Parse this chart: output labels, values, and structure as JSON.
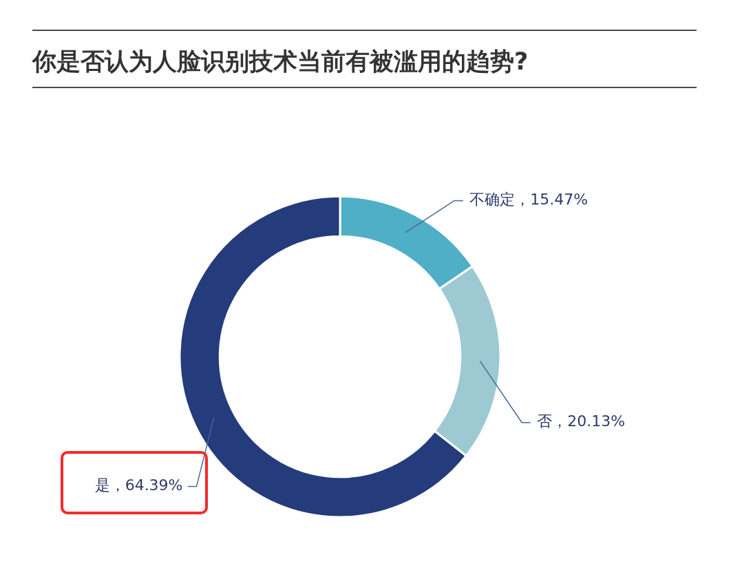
{
  "chart_data": {
    "type": "donut",
    "title": "你是否认为人脸识别技术当前有被滥用的趋势?",
    "categories": [
      "不确定",
      "否",
      "是"
    ],
    "values": [
      15.47,
      20.13,
      64.39
    ],
    "colors": [
      "#4fafc6",
      "#9dcad2",
      "#243b7c"
    ],
    "value_labels": [
      "，15.47%",
      "，20.13%",
      "，64.39%"
    ],
    "legend": false
  }
}
